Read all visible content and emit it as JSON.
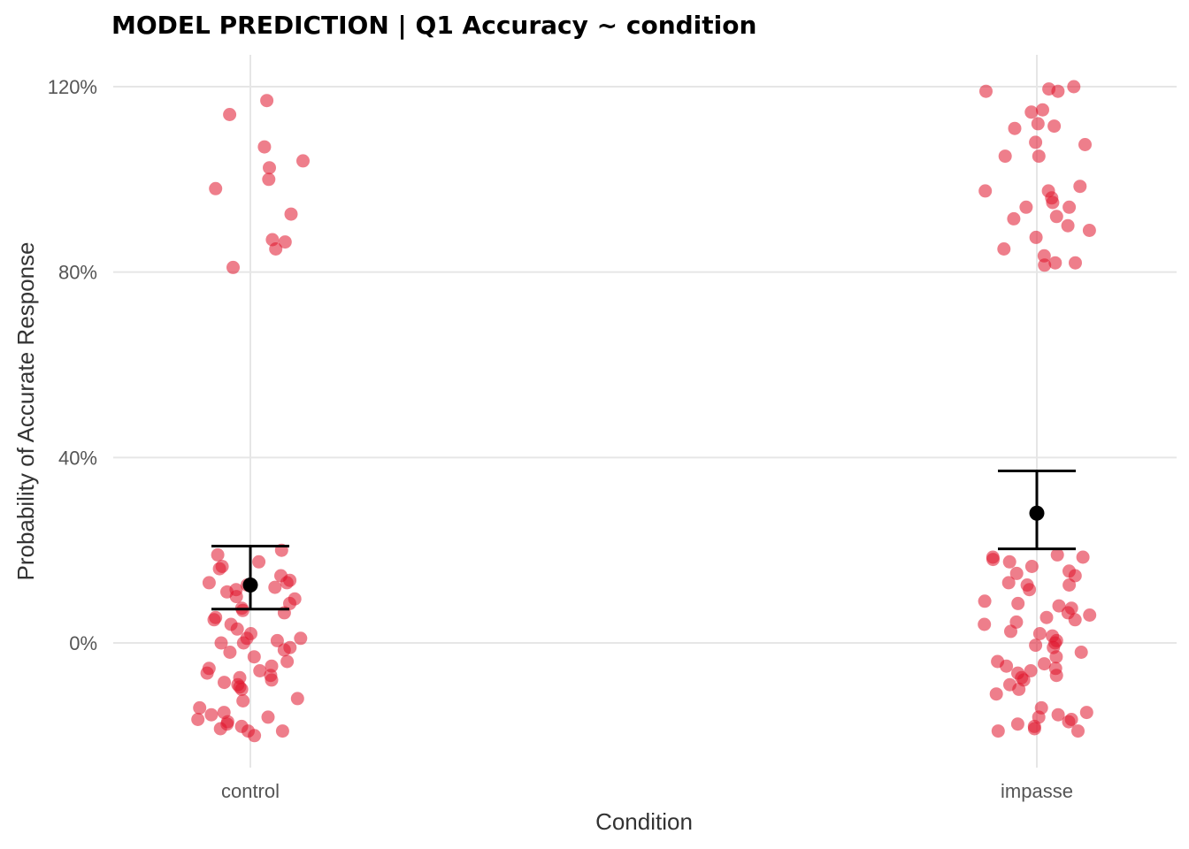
{
  "chart_data": {
    "type": "scatter",
    "title": "MODEL PREDICTION | Q1 Accuracy ~ condition",
    "xlabel": "Condition",
    "ylabel": "Probability of Accurate Response",
    "categories": [
      "control",
      "impasse"
    ],
    "y_ticks": [
      0,
      0.4,
      0.8,
      1.2
    ],
    "y_tick_labels": [
      "0%",
      "40%",
      "80%",
      "120%"
    ],
    "ylim": [
      -0.27,
      1.27
    ],
    "grid": true,
    "colors": {
      "points": "#e0142c",
      "summary": "#000000"
    },
    "summary": [
      {
        "category": "control",
        "mean": 0.125,
        "lower": 0.073,
        "upper": 0.209
      },
      {
        "category": "impasse",
        "mean": 0.28,
        "lower": 0.203,
        "upper": 0.371
      }
    ],
    "points": [
      {
        "category": "control",
        "values": [
          1.17,
          1.14,
          1.07,
          1.04,
          1.025,
          1.0,
          0.98,
          0.925,
          0.87,
          0.865,
          0.85,
          0.81,
          0.2,
          0.19,
          0.175,
          0.165,
          0.16,
          0.145,
          0.135,
          0.13,
          0.13,
          0.125,
          0.12,
          0.115,
          0.11,
          0.1,
          0.095,
          0.085,
          0.075,
          0.07,
          0.065,
          0.055,
          0.05,
          0.04,
          0.03,
          0.02,
          0.01,
          0.01,
          0.005,
          0.0,
          0.0,
          -0.01,
          -0.015,
          -0.02,
          -0.03,
          -0.04,
          -0.05,
          -0.055,
          -0.06,
          -0.065,
          -0.07,
          -0.075,
          -0.08,
          -0.085,
          -0.09,
          -0.095,
          -0.1,
          -0.12,
          -0.125,
          -0.14,
          -0.15,
          -0.155,
          -0.16,
          -0.165,
          -0.17,
          -0.175,
          -0.18,
          -0.185,
          -0.19,
          -0.19,
          -0.2
        ]
      },
      {
        "category": "impasse",
        "values": [
          1.2,
          1.195,
          1.19,
          1.19,
          1.15,
          1.145,
          1.12,
          1.115,
          1.11,
          1.08,
          1.075,
          1.05,
          1.05,
          0.985,
          0.975,
          0.975,
          0.96,
          0.95,
          0.94,
          0.94,
          0.92,
          0.915,
          0.9,
          0.89,
          0.875,
          0.85,
          0.835,
          0.82,
          0.82,
          0.815,
          0.19,
          0.185,
          0.185,
          0.18,
          0.175,
          0.165,
          0.155,
          0.15,
          0.145,
          0.13,
          0.125,
          0.125,
          0.115,
          0.09,
          0.085,
          0.08,
          0.075,
          0.065,
          0.06,
          0.055,
          0.05,
          0.045,
          0.04,
          0.025,
          0.02,
          0.015,
          0.005,
          0.0,
          -0.005,
          -0.01,
          -0.02,
          -0.03,
          -0.04,
          -0.045,
          -0.05,
          -0.055,
          -0.06,
          -0.065,
          -0.07,
          -0.075,
          -0.08,
          -0.09,
          -0.1,
          -0.11,
          -0.14,
          -0.15,
          -0.155,
          -0.16,
          -0.165,
          -0.17,
          -0.175,
          -0.18,
          -0.185,
          -0.19,
          -0.19
        ]
      }
    ]
  }
}
